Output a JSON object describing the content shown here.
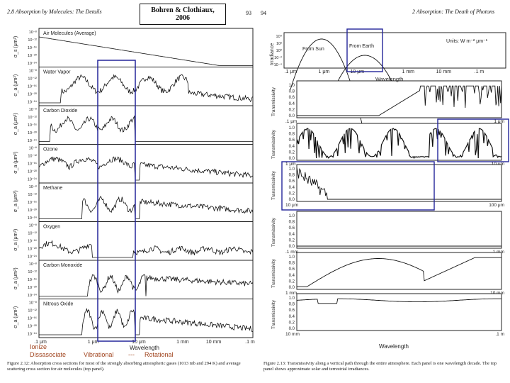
{
  "left_page": {
    "header_text": "2.8  Absorption by Molecules: The Details",
    "page_number": "93",
    "citation": "Bohren & Clothiaux, 2006",
    "panels": [
      {
        "label": "Air Molecules (Average)",
        "ylabel": "σ_s (μm²)",
        "ticks": [
          "10⁻⁸",
          "10⁻¹²",
          "10⁻¹⁶",
          "10⁻²⁰",
          "10⁻²⁴"
        ]
      },
      {
        "label": "Water Vapor",
        "ylabel": "σ_a (μm²)",
        "ticks": [
          "10⁻⁸",
          "10⁻¹²",
          "10⁻¹⁶",
          "10⁻²⁰",
          "10⁻²⁴"
        ]
      },
      {
        "label": "Carbon Dioxide",
        "ylabel": "σ_a (μm²)",
        "ticks": [
          "10⁻⁸",
          "10⁻¹²",
          "10⁻¹⁶",
          "10⁻²⁰",
          "10⁻²⁴"
        ]
      },
      {
        "label": "Ozone",
        "ylabel": "σ_a (μm²)",
        "ticks": [
          "10⁻⁸",
          "10⁻¹²",
          "10⁻¹⁶",
          "10⁻²⁰",
          "10⁻²⁴"
        ]
      },
      {
        "label": "Methane",
        "ylabel": "σ_a (μm²)",
        "ticks": [
          "10⁻⁸",
          "10⁻¹²",
          "10⁻¹⁶",
          "10⁻²⁰",
          "10⁻²⁴"
        ]
      },
      {
        "label": "Oxygen",
        "ylabel": "σ_a (μm²)",
        "ticks": [
          "10⁻⁸",
          "10⁻¹²",
          "10⁻¹⁶",
          "10⁻²⁰",
          "10⁻²⁴"
        ]
      },
      {
        "label": "Carbon Monoxide",
        "ylabel": "σ_a (μm²)",
        "ticks": [
          "10⁻⁸",
          "10⁻¹²",
          "10⁻¹⁶",
          "10⁻²⁰",
          "10⁻²⁴"
        ]
      },
      {
        "label": "Nitrous Oxide",
        "ylabel": "σ_a (μm²)",
        "ticks": [
          "10⁻⁸",
          "10⁻¹²",
          "10⁻¹⁶",
          "10⁻²⁰",
          "10⁻²⁴"
        ]
      }
    ],
    "x_ticks": [
      ".1 μm",
      "1 μm",
      "10 μm",
      "1 mm",
      "10 mm",
      ".1 m"
    ],
    "x_label": "Wavelength",
    "band_labels": {
      "ionize": "Ionize",
      "dissociate": "Dissasociate",
      "vibrational": "Vibrational",
      "dash": "---",
      "rotational": "Rotational"
    },
    "figure_caption": "Figure 2.12: Absorption cross sections for most of the strongly absorbing atmospheric gases (1013 mb and 294 K) and average scattering cross section for air molecules (top panel)."
  },
  "right_page": {
    "page_number": "94",
    "header_text": "2  Absorption: The Death of Photons",
    "irradiance": {
      "ylabel": "Irradiance",
      "units": "Units: W m⁻² μm⁻¹",
      "from_sun": "From Sun",
      "from_earth": "From Earth",
      "ticks": [
        "10⁴",
        "10²",
        "10⁰",
        "10⁻²",
        "10⁻⁴"
      ]
    },
    "top_x_ticks": [
      ".1 μm",
      "1 μm",
      "10 μm",
      "1 mm",
      "10 mm",
      ".1 m"
    ],
    "x_label": "Wavelength",
    "panel_ylabel": "Transmissivity",
    "t_ticks": [
      "1.0",
      "0.8",
      "0.6",
      "0.4",
      "0.2",
      "0.0"
    ],
    "panels": [
      {
        "left": ".1 μm",
        "right": "1 μm"
      },
      {
        "left": "1 μm",
        "right": "10 μm"
      },
      {
        "left": "10 μm",
        "right": "100 μm"
      },
      {
        "left": ".1 mm",
        "right": "1 mm"
      },
      {
        "left": "1 mm",
        "right": "10 mm"
      },
      {
        "left": "10 mm",
        "right": ".1 m"
      }
    ],
    "bottom_x_label": "Wavelength",
    "figure_caption": "Figure 2.13: Transmissivity along a vertical path through the entire atmosphere. Each panel is one wavelength decade. The top panel shows approximate solar and terrestrial irradiances."
  }
}
